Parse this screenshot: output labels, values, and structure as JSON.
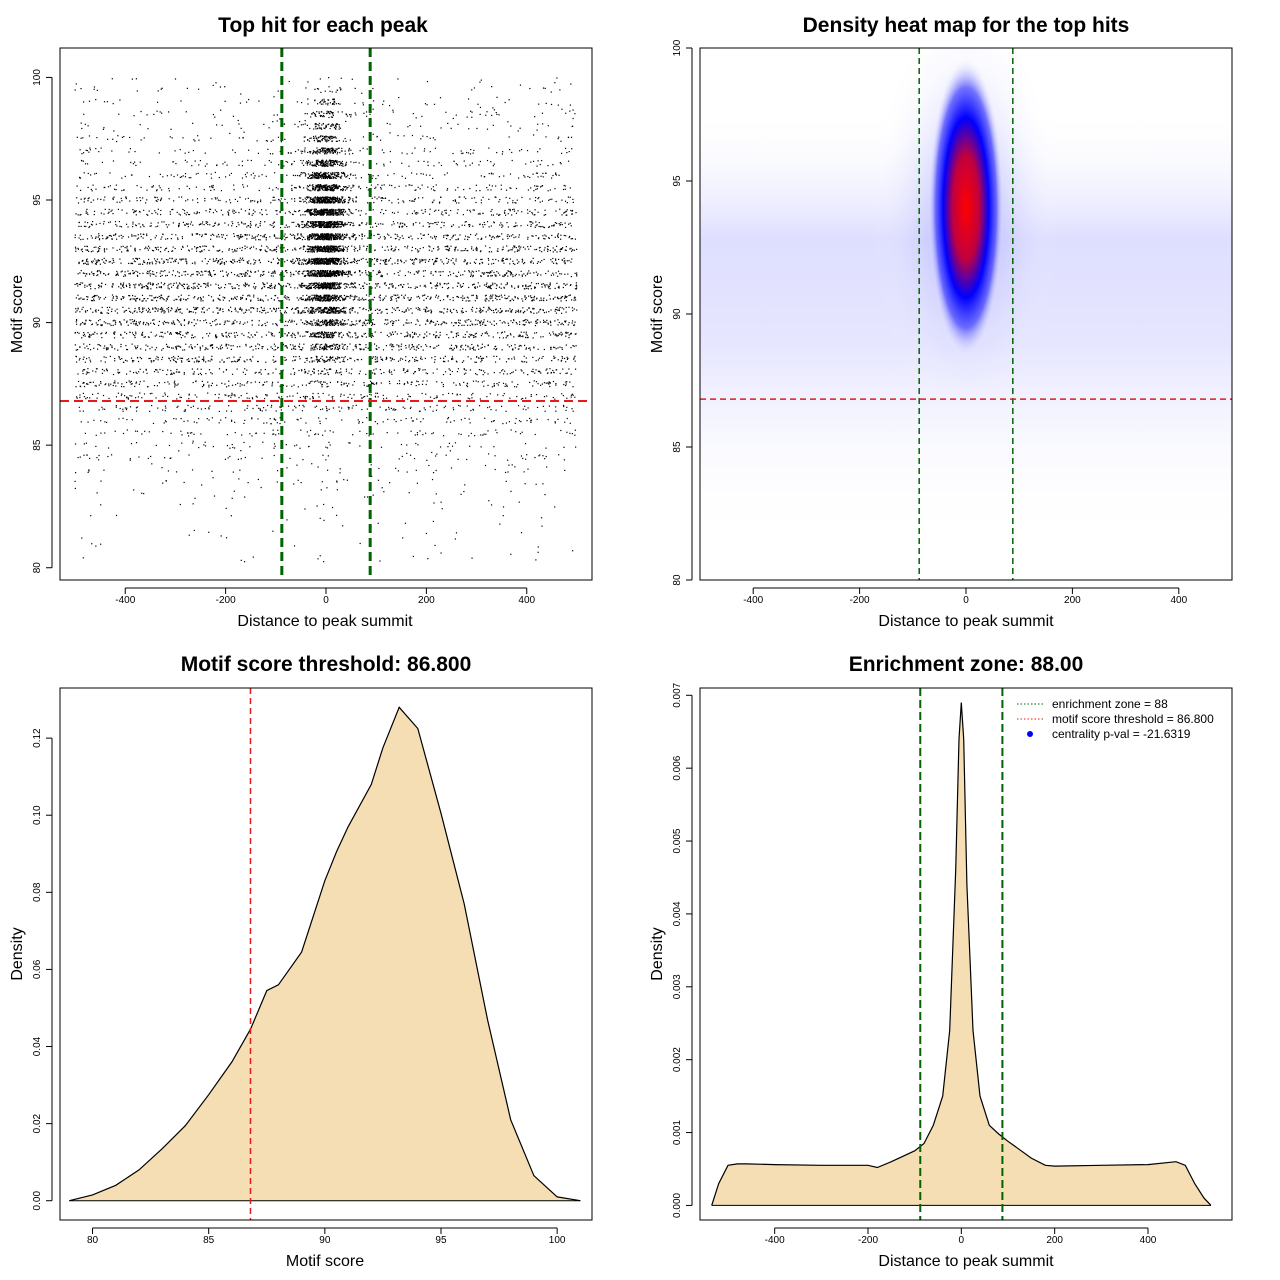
{
  "panels": {
    "scatter": {
      "title": "Top hit for each peak",
      "xlabel": "Distance to peak summit",
      "ylabel": "Motif score"
    },
    "heatmap": {
      "title": "Density heat map for the top hits",
      "xlabel": "Distance to peak summit",
      "ylabel": "Motif score"
    },
    "score_density": {
      "title": "Motif score threshold: 86.800",
      "xlabel": "Motif score",
      "ylabel": "Density"
    },
    "distance_density": {
      "title": "Enrichment zone: 88.00",
      "xlabel": "Distance to peak summit",
      "ylabel": "Density",
      "legend": [
        {
          "label": "enrichment zone = 88",
          "color": "#006400",
          "style": "dotted"
        },
        {
          "label": "motif score threshold = 86.800",
          "color": "#e41a1c",
          "style": "dotted"
        },
        {
          "label": "centrality p-val = -21.6319",
          "color": "#0000ff",
          "style": "point"
        }
      ]
    }
  },
  "colors": {
    "enrichment_line": "#006400",
    "threshold_line": "#e41a1c",
    "density_fill": "#f5deb3",
    "heat_low": "#ffffff",
    "heat_mid": "#0000ff",
    "heat_high": "#ff0000"
  },
  "chart_data": [
    {
      "type": "scatter",
      "title": "Top hit for each peak",
      "xlabel": "Distance to peak summit",
      "ylabel": "Motif score",
      "xlim": [
        -530,
        530
      ],
      "ylim": [
        79.5,
        101.2
      ],
      "xticks": [
        -400,
        -200,
        0,
        200,
        400
      ],
      "yticks": [
        80,
        85,
        90,
        95,
        100
      ],
      "grid": false,
      "x_range_of_points": [
        -500,
        500
      ],
      "y_range_of_points": [
        80,
        100
      ],
      "center_cluster": {
        "x_center": 0,
        "y_center": 93.5
      },
      "vlines": [
        -88,
        88
      ],
      "hline": 86.8
    },
    {
      "type": "heatmap",
      "title": "Density heat map for the top hits",
      "xlabel": "Distance to peak summit",
      "ylabel": "Motif score",
      "xlim": [
        -500,
        500
      ],
      "ylim": [
        80,
        100
      ],
      "xticks": [
        -400,
        -200,
        0,
        200,
        400
      ],
      "yticks": [
        80,
        85,
        90,
        95,
        100
      ],
      "grid": false,
      "peak": {
        "x": 0,
        "y": 94
      },
      "vlines": [
        -88,
        88
      ],
      "hline": 86.8
    },
    {
      "type": "area",
      "title": "Motif score threshold: 86.800",
      "xlabel": "Motif score",
      "ylabel": "Density",
      "xlim": [
        78.6,
        101.5
      ],
      "ylim": [
        -0.005,
        0.133
      ],
      "xticks": [
        80,
        85,
        90,
        95,
        100
      ],
      "yticks": [
        0.0,
        0.02,
        0.04,
        0.06,
        0.08,
        0.1,
        0.12
      ],
      "ytick_labels": [
        "0.00",
        "0.02",
        "0.04",
        "0.06",
        "0.08",
        "0.10",
        "0.12"
      ],
      "grid": false,
      "x": [
        79.0,
        80.0,
        81.0,
        82.0,
        83.0,
        84.0,
        85.0,
        86.0,
        86.8,
        87.5,
        88.0,
        89.0,
        90.0,
        90.5,
        91.0,
        92.0,
        92.5,
        93.2,
        94.0,
        95.0,
        96.0,
        97.0,
        98.0,
        99.0,
        100.0,
        101.0
      ],
      "y": [
        0.0,
        0.0015,
        0.004,
        0.008,
        0.0135,
        0.0195,
        0.0275,
        0.036,
        0.0445,
        0.0545,
        0.056,
        0.0645,
        0.083,
        0.0905,
        0.097,
        0.108,
        0.1175,
        0.128,
        0.1225,
        0.1005,
        0.077,
        0.047,
        0.021,
        0.0065,
        0.001,
        0.0
      ],
      "vline": 86.8
    },
    {
      "type": "area",
      "title": "Enrichment zone: 88.00",
      "xlabel": "Distance to peak summit",
      "ylabel": "Density",
      "xlim": [
        -560,
        580
      ],
      "ylim": [
        -0.0002,
        0.0071
      ],
      "xticks": [
        -400,
        -200,
        0,
        200,
        400
      ],
      "yticks": [
        0.0,
        0.001,
        0.002,
        0.003,
        0.004,
        0.005,
        0.006,
        0.007
      ],
      "ytick_labels": [
        "0.000",
        "0.001",
        "0.002",
        "0.003",
        "0.004",
        "0.005",
        "0.006",
        "0.007"
      ],
      "grid": false,
      "legend_position": "top-right",
      "x": [
        -535,
        -520,
        -500,
        -480,
        -460,
        -400,
        -300,
        -200,
        -180,
        -150,
        -100,
        -80,
        -60,
        -40,
        -25,
        -12,
        -5,
        0,
        5,
        12,
        25,
        40,
        60,
        80,
        100,
        150,
        180,
        200,
        300,
        400,
        460,
        480,
        500,
        520,
        535
      ],
      "y": [
        0.0,
        0.0003,
        0.00055,
        0.00057,
        0.00057,
        0.00056,
        0.00055,
        0.00055,
        0.00052,
        0.0006,
        0.00075,
        0.00085,
        0.0011,
        0.0015,
        0.0024,
        0.0046,
        0.0064,
        0.0069,
        0.0064,
        0.0044,
        0.0024,
        0.0015,
        0.0011,
        0.00098,
        0.00088,
        0.00065,
        0.00055,
        0.00054,
        0.00055,
        0.00056,
        0.0006,
        0.00055,
        0.0003,
        0.0001,
        0.0
      ],
      "vlines": [
        -88,
        88
      ]
    }
  ]
}
